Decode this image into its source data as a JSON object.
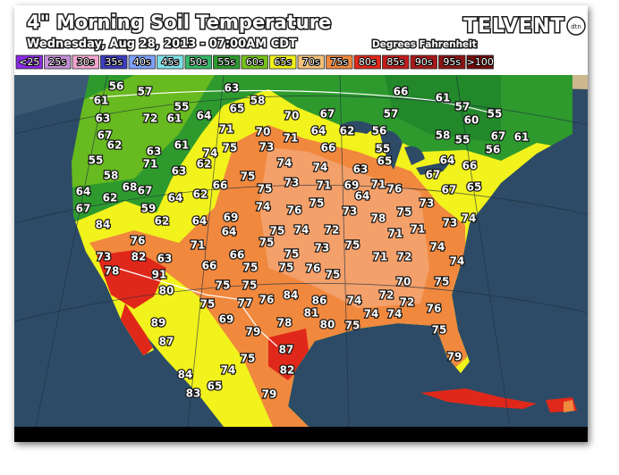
{
  "header": {
    "title": "4\" Morning Soil Temperature",
    "subtitle": "Wednesday, Aug 28, 2013 - 07:00AM CDT",
    "units": "Degrees Fahrenheit",
    "logo": "TELVENT",
    "logo_badge": "dtn"
  },
  "legend": [
    {
      "label": "<25",
      "color": "#8a2be2"
    },
    {
      "label": "25s",
      "color": "#c48fd8"
    },
    {
      "label": "30s",
      "color": "#f4a6d2"
    },
    {
      "label": "35s",
      "color": "#3d3dbf"
    },
    {
      "label": "40s",
      "color": "#7fa0ff"
    },
    {
      "label": "45s",
      "color": "#7fe0e8"
    },
    {
      "label": "50s",
      "color": "#36b86a"
    },
    {
      "label": "55s",
      "color": "#2e9a2e"
    },
    {
      "label": "60s",
      "color": "#76c21c"
    },
    {
      "label": "65s",
      "color": "#f2f21c"
    },
    {
      "label": "70s",
      "color": "#f2c07a"
    },
    {
      "label": "75s",
      "color": "#f0883e"
    },
    {
      "label": "80s",
      "color": "#e0281a"
    },
    {
      "label": "85s",
      "color": "#c41c1c"
    },
    {
      "label": "90s",
      "color": "#a81818"
    },
    {
      "label": "95s",
      "color": "#8a1414"
    },
    {
      "label": ">100",
      "color": "#700c0c"
    }
  ],
  "map": {
    "readings": [
      56,
      57,
      63,
      58,
      66,
      61,
      57,
      60,
      55,
      61,
      72,
      55,
      61,
      64,
      65,
      70,
      67,
      57,
      63,
      67,
      62,
      71,
      70,
      71,
      64,
      62,
      56,
      58,
      55,
      67,
      61,
      63,
      61,
      74,
      75,
      73,
      66,
      55,
      56,
      55,
      71,
      62,
      74,
      74,
      63,
      65,
      64,
      66,
      58,
      63,
      75,
      73,
      67,
      64,
      62,
      68,
      67,
      64,
      62,
      66,
      75,
      71,
      69,
      64,
      71,
      76,
      67,
      65,
      67,
      59,
      74,
      76,
      75,
      73,
      78,
      75,
      73,
      73,
      74,
      84,
      62,
      64,
      69,
      64,
      75,
      74,
      72,
      71,
      71,
      75,
      73,
      75,
      74,
      76,
      71,
      73,
      82,
      63,
      66,
      75,
      71,
      72,
      74,
      78,
      91,
      66,
      75,
      75,
      76,
      75,
      80,
      75,
      75,
      84,
      72,
      70,
      75,
      75,
      77,
      76,
      86,
      74,
      72,
      76,
      81,
      69,
      78,
      80,
      75,
      74,
      74,
      89,
      79,
      75,
      87,
      87,
      79,
      75,
      82,
      84,
      74,
      83,
      65,
      79
    ]
  }
}
